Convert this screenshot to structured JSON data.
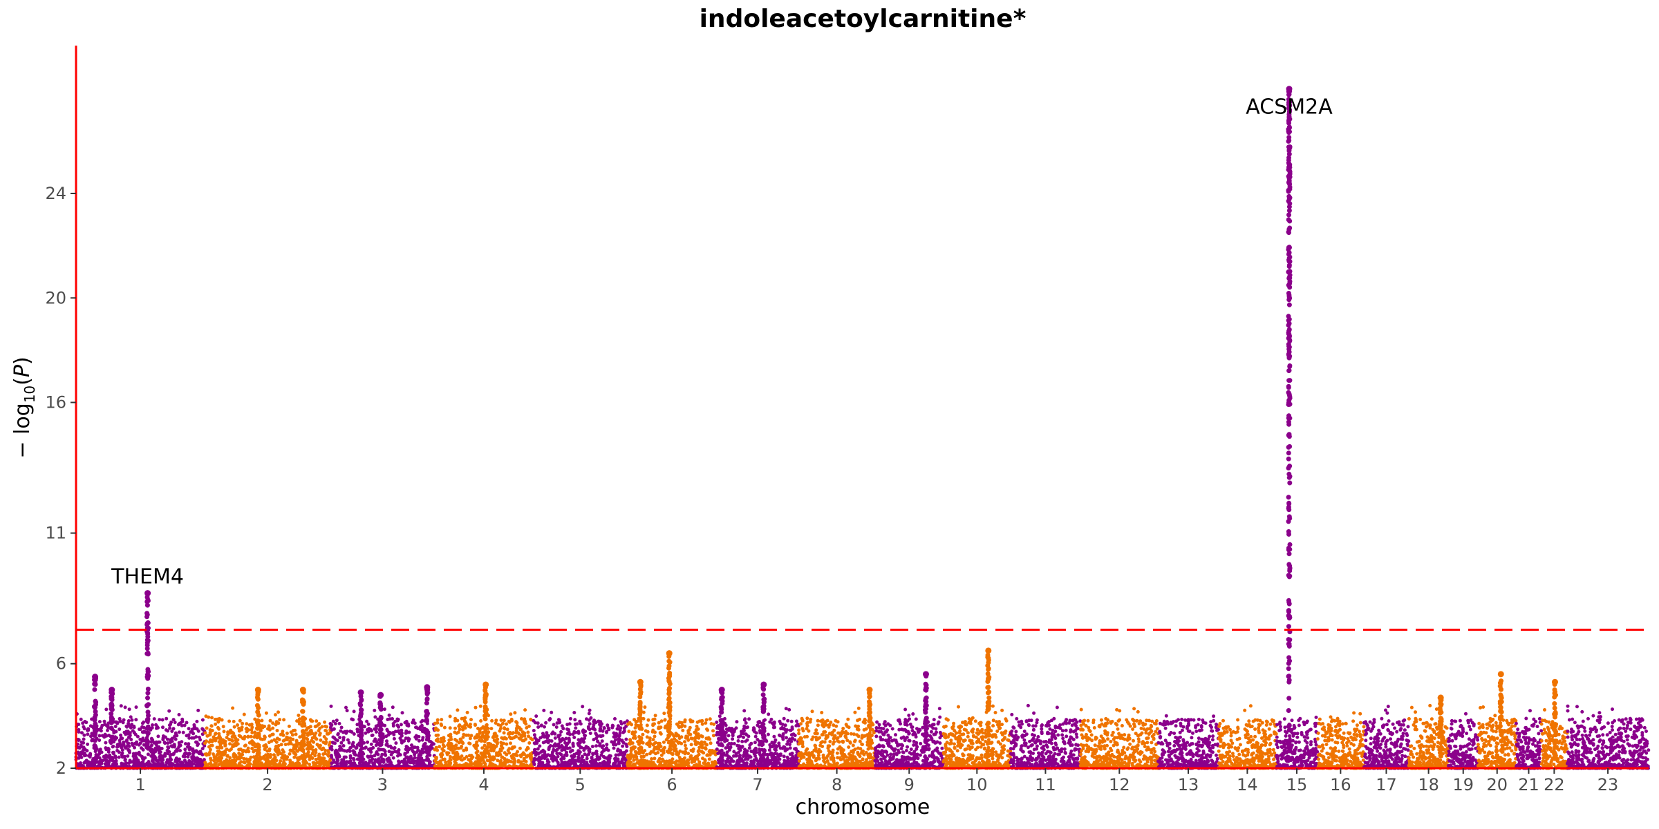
{
  "chart_data": {
    "type": "scatter",
    "title": "indoleacetoylcarnitine*",
    "xlabel": "chromosome",
    "ylabel": "−log10(P)",
    "y_ticks": [
      2,
      6,
      11,
      16,
      20,
      24
    ],
    "y_tick_labels": [
      "2",
      "6",
      "11",
      "16",
      "20",
      "24"
    ],
    "ylim": [
      2,
      29.5
    ],
    "threshold": 7.3,
    "threshold_color": "#ff0000",
    "grid": false,
    "colors": {
      "odd": "#8b008b",
      "even": "#ef7300",
      "axis": "#ff0000"
    },
    "chromosomes": [
      {
        "label": "1",
        "start": 0.0,
        "end": 1.69
      },
      {
        "label": "2",
        "start": 1.69,
        "end": 3.34
      },
      {
        "label": "3",
        "start": 3.34,
        "end": 4.71
      },
      {
        "label": "4",
        "start": 4.71,
        "end": 6.0
      },
      {
        "label": "5",
        "start": 6.0,
        "end": 7.24
      },
      {
        "label": "6",
        "start": 7.24,
        "end": 8.41
      },
      {
        "label": "7",
        "start": 8.41,
        "end": 9.49
      },
      {
        "label": "8",
        "start": 9.49,
        "end": 10.49
      },
      {
        "label": "9",
        "start": 10.49,
        "end": 11.39
      },
      {
        "label": "10",
        "start": 11.39,
        "end": 12.27
      },
      {
        "label": "11",
        "start": 12.27,
        "end": 13.19
      },
      {
        "label": "12",
        "start": 13.19,
        "end": 14.21
      },
      {
        "label": "13",
        "start": 14.21,
        "end": 15.0
      },
      {
        "label": "14",
        "start": 15.0,
        "end": 15.76
      },
      {
        "label": "15",
        "start": 15.76,
        "end": 16.3
      },
      {
        "label": "16",
        "start": 16.3,
        "end": 16.91
      },
      {
        "label": "17",
        "start": 16.91,
        "end": 17.5
      },
      {
        "label": "18",
        "start": 17.5,
        "end": 18.02
      },
      {
        "label": "19",
        "start": 18.02,
        "end": 18.41
      },
      {
        "label": "20",
        "start": 18.41,
        "end": 18.91
      },
      {
        "label": "21",
        "start": 18.91,
        "end": 19.24
      },
      {
        "label": "22",
        "start": 19.24,
        "end": 19.58
      },
      {
        "label": "23",
        "start": 19.58,
        "end": 20.65
      }
    ],
    "peaks": [
      {
        "x": 0.25,
        "y": 5.5
      },
      {
        "x": 0.47,
        "y": 5.0
      },
      {
        "x": 0.94,
        "y": 8.7
      },
      {
        "x": 2.39,
        "y": 5.0
      },
      {
        "x": 2.98,
        "y": 5.0
      },
      {
        "x": 3.74,
        "y": 4.9
      },
      {
        "x": 4.0,
        "y": 4.8
      },
      {
        "x": 4.61,
        "y": 5.1
      },
      {
        "x": 5.38,
        "y": 5.2
      },
      {
        "x": 7.41,
        "y": 5.3
      },
      {
        "x": 7.79,
        "y": 6.4
      },
      {
        "x": 8.48,
        "y": 5.0
      },
      {
        "x": 9.03,
        "y": 5.2
      },
      {
        "x": 10.42,
        "y": 5.0
      },
      {
        "x": 11.16,
        "y": 5.6
      },
      {
        "x": 11.98,
        "y": 6.5
      },
      {
        "x": 15.93,
        "y": 28.0
      },
      {
        "x": 17.92,
        "y": 4.7
      },
      {
        "x": 18.71,
        "y": 5.6
      },
      {
        "x": 19.42,
        "y": 5.3
      }
    ],
    "annotations": [
      {
        "label": "THEM4",
        "x": 0.94,
        "y": 8.7
      },
      {
        "label": "ACSM2A",
        "x": 15.93,
        "y": 28.0
      }
    ]
  }
}
